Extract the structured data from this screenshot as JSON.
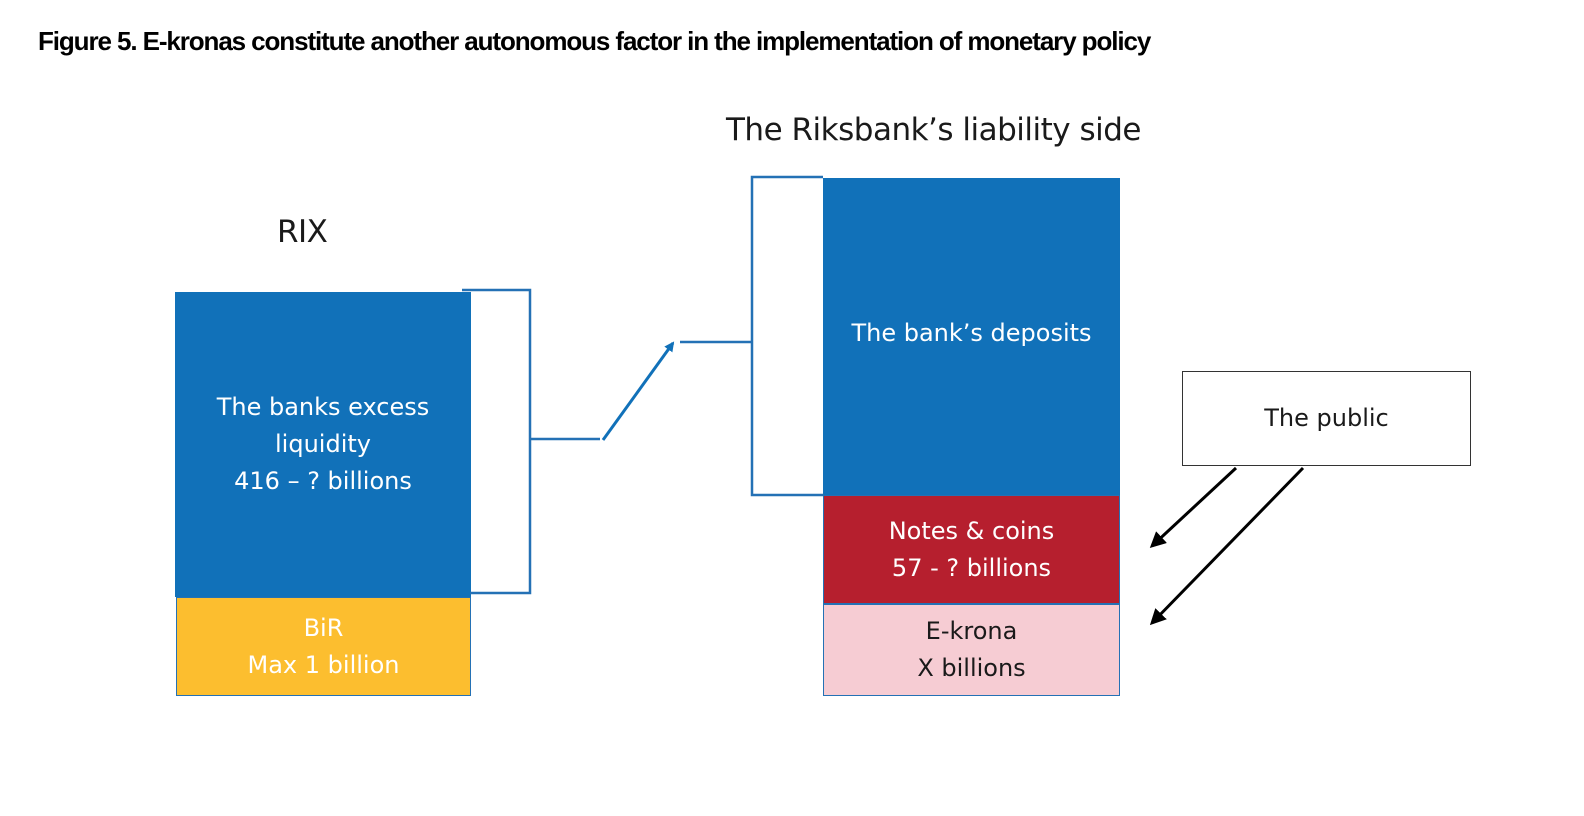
{
  "figure_title": "Figure 5. E-kronas constitute another autonomous factor in the implementation of monetary policy",
  "rix": {
    "heading": "RIX",
    "excess_liquidity": {
      "line1": "The banks excess",
      "line2": "liquidity",
      "line3": "416 – ? billions"
    },
    "bir": {
      "line1": "BiR",
      "line2": "Max 1 billion"
    }
  },
  "liability_side": {
    "heading": "The Riksbank’s liability side",
    "deposits": {
      "line1": "The bank’s deposits"
    },
    "notes_coins": {
      "line1": "Notes & coins",
      "line2": "57 - ? billions"
    },
    "ekrona": {
      "line1": "E-krona",
      "line2": "X billions"
    }
  },
  "public": {
    "label": "The public"
  },
  "colors": {
    "blue": "#1171B9",
    "blue_outline": "#2471B5",
    "yellow": "#FCBE2F",
    "red": "#B61F2E",
    "pink": "#F6CCD3",
    "black": "#000000"
  }
}
